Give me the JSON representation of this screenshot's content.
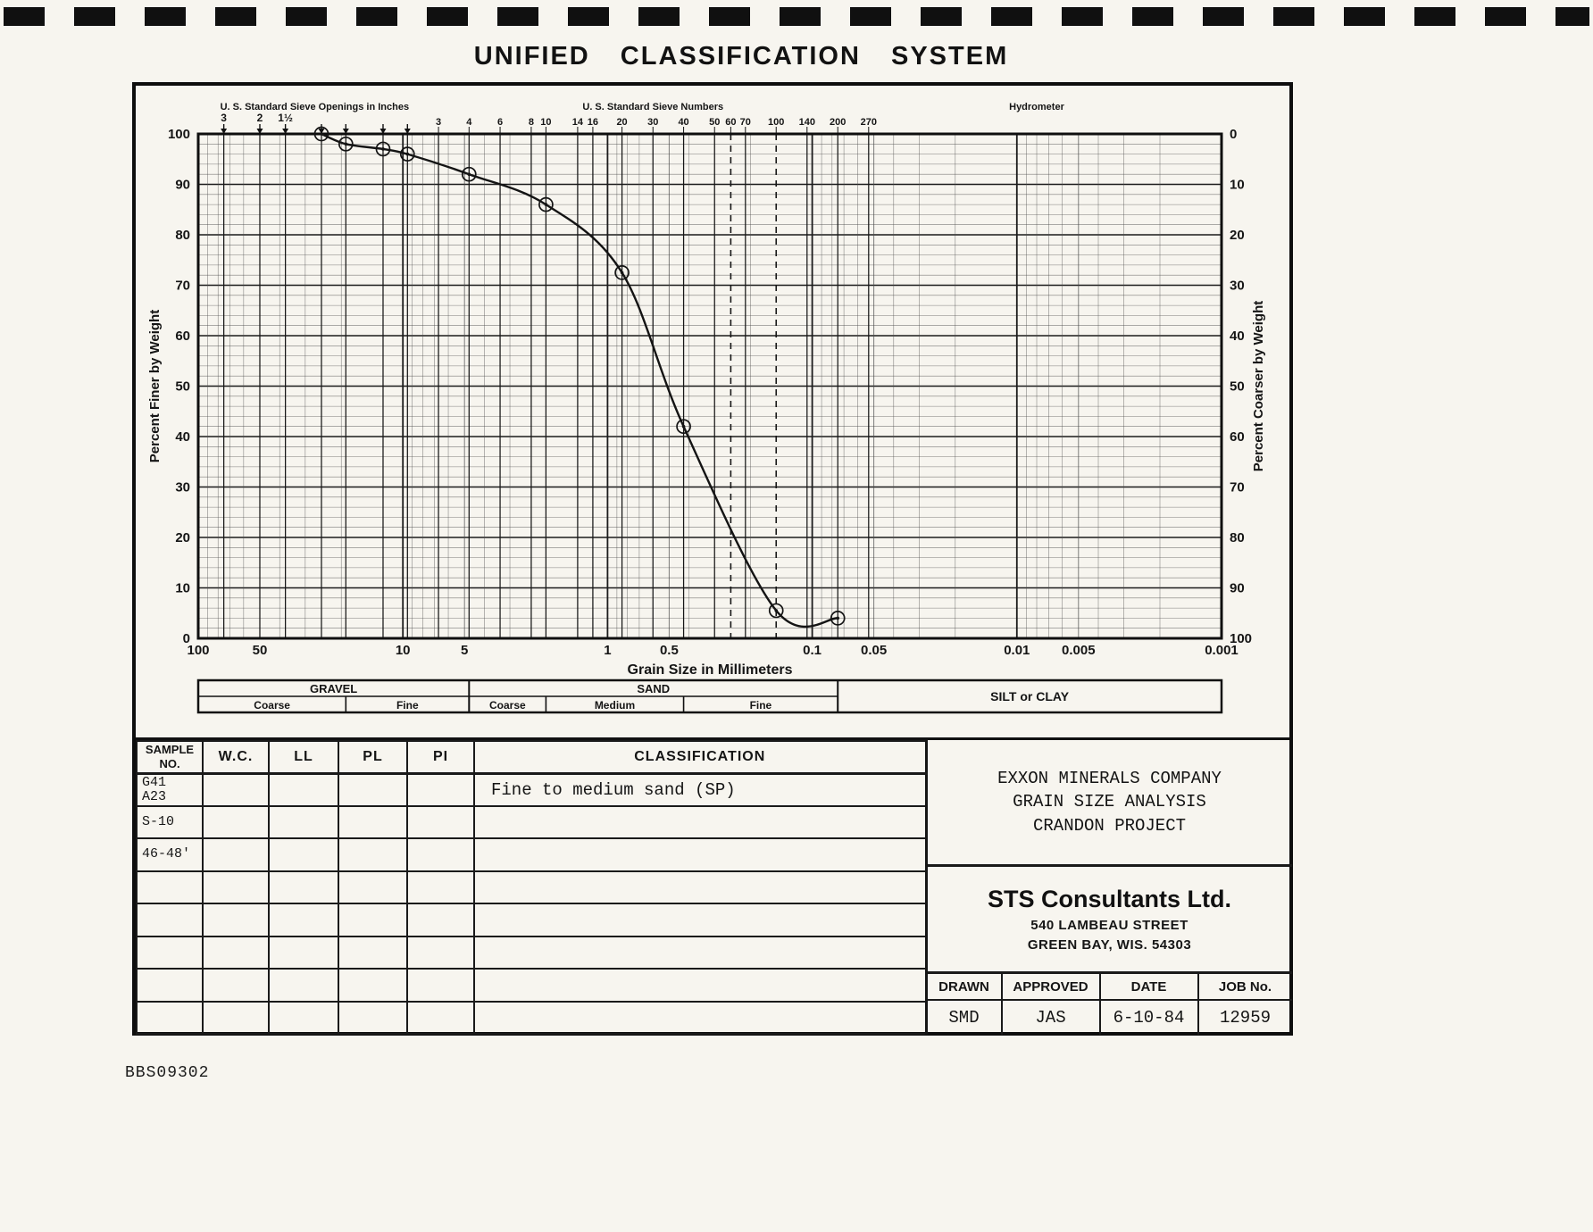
{
  "title": "UNIFIED CLASSIFICATION SYSTEM",
  "doc_number": "BBS09302",
  "colors": {
    "ink": "#151515",
    "paper": "#f7f5ef"
  },
  "chart_data": {
    "type": "line",
    "x_scale": "log",
    "xlabel": "Grain Size in Millimeters",
    "ylabel_left": "Percent Finer by Weight",
    "ylabel_right": "Percent Coarser by Weight",
    "xlim_mm": [
      100,
      0.001
    ],
    "ylim": [
      0,
      100
    ],
    "grid": "on",
    "x_tick_labels": [
      "100",
      "50",
      "10",
      "5",
      "1",
      "0.5",
      "0.1",
      "0.05",
      "0.01",
      "0.005",
      "0.001"
    ],
    "x_tick_values_mm": [
      100,
      50,
      10,
      5,
      1,
      0.5,
      0.1,
      0.05,
      0.01,
      0.005,
      0.001
    ],
    "y_ticks_left": [
      "100",
      "90",
      "80",
      "70",
      "60",
      "50",
      "40",
      "30",
      "20",
      "10",
      "0"
    ],
    "y_ticks_right": [
      "0",
      "10",
      "20",
      "30",
      "40",
      "50",
      "60",
      "70",
      "80",
      "90",
      "100"
    ],
    "top_headers": [
      {
        "label": "U. S. Standard Sieve Openings in Inches",
        "center_mm": 27
      },
      {
        "label": "U. S. Standard Sieve Numbers",
        "center_mm": 0.6
      },
      {
        "label": "Hydrometer",
        "center_mm": 0.008
      }
    ],
    "sieve_openings_inches": [
      {
        "label": "3",
        "mm": 75
      },
      {
        "label": "2",
        "mm": 50
      },
      {
        "label": "1½",
        "mm": 37.5
      },
      {
        "label": "",
        "mm": 25
      },
      {
        "label": "",
        "mm": 19
      },
      {
        "label": "",
        "mm": 12.5
      },
      {
        "label": "",
        "mm": 9.5
      }
    ],
    "sieve_numbers": [
      {
        "label": "3",
        "mm": 6.7
      },
      {
        "label": "4",
        "mm": 4.75
      },
      {
        "label": "6",
        "mm": 3.35
      },
      {
        "label": "8",
        "mm": 2.36
      },
      {
        "label": "10",
        "mm": 2.0
      },
      {
        "label": "14",
        "mm": 1.4
      },
      {
        "label": "16",
        "mm": 1.18
      },
      {
        "label": "20",
        "mm": 0.85
      },
      {
        "label": "30",
        "mm": 0.6
      },
      {
        "label": "40",
        "mm": 0.425
      },
      {
        "label": "50",
        "mm": 0.3
      },
      {
        "label": "60",
        "mm": 0.25
      },
      {
        "label": "70",
        "mm": 0.212
      },
      {
        "label": "100",
        "mm": 0.15
      },
      {
        "label": "140",
        "mm": 0.106
      },
      {
        "label": "200",
        "mm": 0.075
      },
      {
        "label": "270",
        "mm": 0.053
      }
    ],
    "dashed_vertical_mm": [
      0.25,
      0.15
    ],
    "series": [
      {
        "name": "Sample G41 A23 S-10 46-48'",
        "points_mm_percent_finer": [
          [
            25,
            100
          ],
          [
            19,
            98
          ],
          [
            12.5,
            97
          ],
          [
            9.5,
            96
          ],
          [
            4.75,
            92
          ],
          [
            2.0,
            86
          ],
          [
            0.85,
            72.5
          ],
          [
            0.425,
            42
          ],
          [
            0.15,
            5.5
          ],
          [
            0.075,
            4
          ]
        ]
      }
    ],
    "grain_size_bands": [
      {
        "label": "GRAVEL",
        "range_mm": [
          100,
          4.75
        ],
        "subdivisions": [
          {
            "label": "Coarse",
            "range_mm": [
              100,
              19
            ]
          },
          {
            "label": "Fine",
            "range_mm": [
              19,
              4.75
            ]
          }
        ]
      },
      {
        "label": "SAND",
        "range_mm": [
          4.75,
          0.075
        ],
        "subdivisions": [
          {
            "label": "Coarse",
            "range_mm": [
              4.75,
              2.0
            ]
          },
          {
            "label": "Medium",
            "range_mm": [
              2.0,
              0.425
            ]
          },
          {
            "label": "Fine",
            "range_mm": [
              0.425,
              0.075
            ]
          }
        ]
      },
      {
        "label": "SILT or CLAY",
        "range_mm": [
          0.075,
          0.001
        ],
        "subdivisions": []
      }
    ]
  },
  "sample_table": {
    "headers": [
      "SAMPLE\nNO.",
      "W.C.",
      "LL",
      "PL",
      "PI",
      "CLASSIFICATION"
    ],
    "rows": [
      [
        "G41\nA23",
        "",
        "",
        "",
        "",
        "Fine to medium sand (SP)"
      ],
      [
        "S-10",
        "",
        "",
        "",
        "",
        ""
      ],
      [
        "46-48'",
        "",
        "",
        "",
        "",
        ""
      ],
      [
        "",
        "",
        "",
        "",
        "",
        ""
      ],
      [
        "",
        "",
        "",
        "",
        "",
        ""
      ],
      [
        "",
        "",
        "",
        "",
        "",
        ""
      ],
      [
        "",
        "",
        "",
        "",
        "",
        ""
      ],
      [
        "",
        "",
        "",
        "",
        "",
        ""
      ]
    ]
  },
  "title_block": {
    "project_lines": [
      "EXXON MINERALS COMPANY",
      "GRAIN SIZE ANALYSIS",
      "CRANDON PROJECT"
    ],
    "firm_name": "STS Consultants Ltd.",
    "firm_address_lines": [
      "540 LAMBEAU STREET",
      "GREEN BAY, WIS. 54303"
    ],
    "signoff_headers": [
      "DRAWN",
      "APPROVED",
      "DATE",
      "JOB No."
    ],
    "signoff_values": [
      "SMD",
      "JAS",
      "6-10-84",
      "12959"
    ]
  }
}
